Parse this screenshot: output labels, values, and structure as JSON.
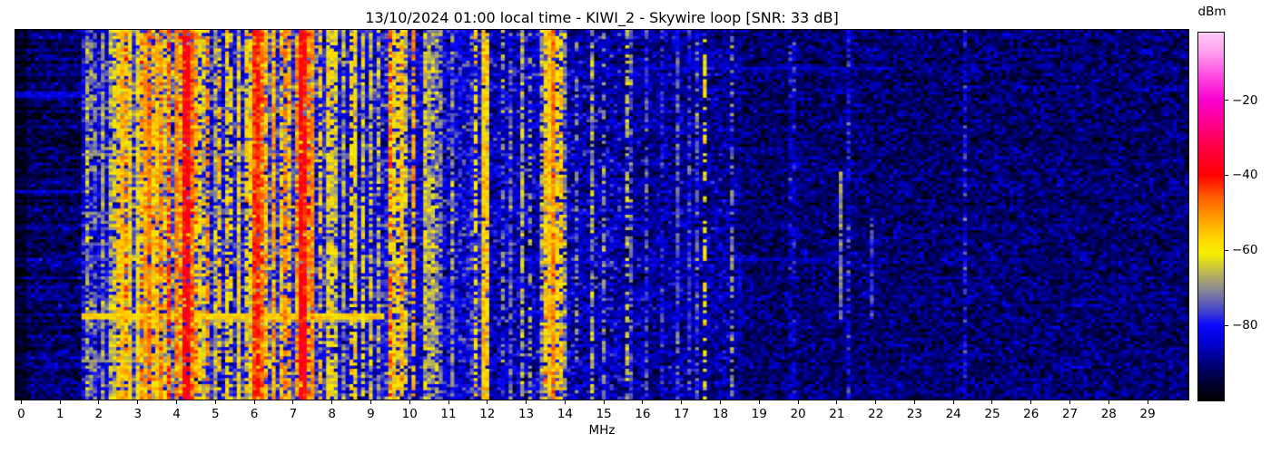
{
  "chart_data": {
    "type": "heatmap",
    "title": "13/10/2024 01:00 local time - KIWI_2 - Skywire loop [SNR: 33 dB]",
    "xlabel": "MHz",
    "x_axis": {
      "min_mhz": -0.15,
      "max_mhz": 30.05,
      "ticks": [
        0,
        1,
        2,
        3,
        4,
        5,
        6,
        7,
        8,
        9,
        10,
        11,
        12,
        13,
        14,
        15,
        16,
        17,
        18,
        19,
        20,
        21,
        22,
        23,
        24,
        25,
        26,
        27,
        28,
        29
      ]
    },
    "y_axis": {
      "description": "time (waterfall, no ticks shown)"
    },
    "colorbar": {
      "label": "dBm",
      "vmax": -2,
      "vmin": -100,
      "ticks": [
        {
          "value": -20,
          "label": "−20"
        },
        {
          "value": -40,
          "label": "−40"
        },
        {
          "value": -60,
          "label": "−60"
        },
        {
          "value": -80,
          "label": "−80"
        }
      ]
    },
    "colormap_stops": [
      [
        0,
        "#ffddfa"
      ],
      [
        -7,
        "#ffa0f0"
      ],
      [
        -14,
        "#ff44e0"
      ],
      [
        -20,
        "#f800cf"
      ],
      [
        -26,
        "#ff0090"
      ],
      [
        -33,
        "#ff0040"
      ],
      [
        -40,
        "#ff0000"
      ],
      [
        -46,
        "#ff6000"
      ],
      [
        -52,
        "#ffa500"
      ],
      [
        -57,
        "#ffd800"
      ],
      [
        -61,
        "#f6ee00"
      ],
      [
        -66,
        "#bdb752"
      ],
      [
        -71,
        "#84849b"
      ],
      [
        -76,
        "#4646c8"
      ],
      [
        -80,
        "#0909ff"
      ],
      [
        -85,
        "#0000cf"
      ],
      [
        -90,
        "#000080"
      ],
      [
        -95,
        "#000038"
      ],
      [
        -100,
        "#000000"
      ]
    ],
    "grid": {
      "cols": 302,
      "rows": 120
    },
    "seed": 20241013,
    "bands": [
      {
        "f0": -0.2,
        "f1": 0.12,
        "base": -96,
        "sigma": 2.5,
        "stripe_prob": 0.0,
        "stripe_level": -90,
        "stripe_spread": 4
      },
      {
        "f0": 0.12,
        "f1": 1.55,
        "base": -91.5,
        "sigma": 4,
        "stripe_prob": 0.04,
        "stripe_level": -84,
        "stripe_spread": 5
      },
      {
        "f0": 1.55,
        "f1": 2.35,
        "base": -82,
        "sigma": 5,
        "stripe_prob": 0.3,
        "stripe_level": -72,
        "stripe_spread": 10
      },
      {
        "f0": 2.35,
        "f1": 3.75,
        "base": -76,
        "sigma": 6,
        "stripe_prob": 0.75,
        "stripe_level": -58,
        "stripe_spread": 14
      },
      {
        "f0": 3.75,
        "f1": 4.55,
        "base": -73,
        "sigma": 7,
        "stripe_prob": 0.85,
        "stripe_level": -52,
        "stripe_spread": 14
      },
      {
        "f0": 4.55,
        "f1": 5.85,
        "base": -80,
        "sigma": 6,
        "stripe_prob": 0.45,
        "stripe_level": -62,
        "stripe_spread": 12
      },
      {
        "f0": 5.85,
        "f1": 6.45,
        "base": -75,
        "sigma": 6,
        "stripe_prob": 0.8,
        "stripe_level": -54,
        "stripe_spread": 12
      },
      {
        "f0": 6.45,
        "f1": 7.05,
        "base": -78,
        "sigma": 6,
        "stripe_prob": 0.6,
        "stripe_level": -58,
        "stripe_spread": 12
      },
      {
        "f0": 7.05,
        "f1": 7.5,
        "base": -71,
        "sigma": 7,
        "stripe_prob": 0.9,
        "stripe_level": -47,
        "stripe_spread": 12
      },
      {
        "f0": 7.5,
        "f1": 8.15,
        "base": -79,
        "sigma": 6,
        "stripe_prob": 0.55,
        "stripe_level": -60,
        "stripe_spread": 12
      },
      {
        "f0": 8.15,
        "f1": 9.25,
        "base": -82,
        "sigma": 5,
        "stripe_prob": 0.3,
        "stripe_level": -66,
        "stripe_spread": 10
      },
      {
        "f0": 9.25,
        "f1": 10.1,
        "base": -80,
        "sigma": 6,
        "stripe_prob": 0.6,
        "stripe_level": -60,
        "stripe_spread": 12
      },
      {
        "f0": 10.1,
        "f1": 11.55,
        "base": -83,
        "sigma": 5,
        "stripe_prob": 0.25,
        "stripe_level": -68,
        "stripe_spread": 10
      },
      {
        "f0": 11.55,
        "f1": 12.1,
        "base": -80,
        "sigma": 6,
        "stripe_prob": 0.6,
        "stripe_level": -60,
        "stripe_spread": 10
      },
      {
        "f0": 12.1,
        "f1": 13.4,
        "base": -85,
        "sigma": 5,
        "stripe_prob": 0.2,
        "stripe_level": -70,
        "stripe_spread": 10
      },
      {
        "f0": 13.4,
        "f1": 13.9,
        "base": -78,
        "sigma": 6,
        "stripe_prob": 0.75,
        "stripe_level": -56,
        "stripe_spread": 10
      },
      {
        "f0": 13.9,
        "f1": 15.45,
        "base": -86,
        "sigma": 5,
        "stripe_prob": 0.15,
        "stripe_level": -72,
        "stripe_spread": 8
      },
      {
        "f0": 15.45,
        "f1": 18.6,
        "base": -88,
        "sigma": 4.5,
        "stripe_prob": 0.12,
        "stripe_level": -78,
        "stripe_spread": 7
      },
      {
        "f0": 18.6,
        "f1": 30.2,
        "base": -91,
        "sigma": 4,
        "stripe_prob": 0.03,
        "stripe_level": -83,
        "stripe_spread": 5
      }
    ],
    "carriers": [
      {
        "f": 1.75,
        "level": -70,
        "duty": 0.5
      },
      {
        "f": 1.93,
        "level": -72,
        "duty": 0.45
      },
      {
        "f": 2.1,
        "level": -68,
        "duty": 0.5
      },
      {
        "f": 2.25,
        "level": -66,
        "duty": 0.5
      },
      {
        "f": 2.45,
        "level": -56,
        "duty": 0.8
      },
      {
        "f": 2.62,
        "level": -54,
        "duty": 0.8
      },
      {
        "f": 2.78,
        "level": -58,
        "duty": 0.7
      },
      {
        "f": 2.95,
        "level": -62,
        "duty": 0.6
      },
      {
        "f": 3.2,
        "level": -52,
        "duty": 0.8
      },
      {
        "f": 3.33,
        "level": -48,
        "duty": 0.85
      },
      {
        "f": 3.48,
        "level": -55,
        "duty": 0.7
      },
      {
        "f": 3.62,
        "level": -50,
        "duty": 0.8
      },
      {
        "f": 3.95,
        "level": -50,
        "duty": 0.75
      },
      {
        "f": 4.15,
        "level": -40,
        "duty": 0.9,
        "w": 2
      },
      {
        "f": 4.28,
        "level": -38,
        "duty": 0.95,
        "w": 2
      },
      {
        "f": 4.42,
        "level": -46,
        "duty": 0.8
      },
      {
        "f": 4.75,
        "level": -50,
        "duty": 0.6
      },
      {
        "f": 5.06,
        "level": -55,
        "duty": 0.5
      },
      {
        "f": 5.35,
        "level": -60,
        "duty": 0.45
      },
      {
        "f": 5.62,
        "level": -58,
        "duty": 0.45
      },
      {
        "f": 5.95,
        "level": -44,
        "duty": 0.85
      },
      {
        "f": 6.07,
        "level": -42,
        "duty": 0.9
      },
      {
        "f": 6.19,
        "level": -46,
        "duty": 0.8
      },
      {
        "f": 6.45,
        "level": -54,
        "duty": 0.6
      },
      {
        "f": 6.8,
        "level": -50,
        "duty": 0.7
      },
      {
        "f": 7.2,
        "level": -38,
        "duty": 0.95,
        "w": 2
      },
      {
        "f": 7.33,
        "level": -41,
        "duty": 0.9
      },
      {
        "f": 7.48,
        "level": -50,
        "duty": 0.7
      },
      {
        "f": 7.7,
        "level": -56,
        "duty": 0.6
      },
      {
        "f": 7.9,
        "level": -58,
        "duty": 0.55
      },
      {
        "f": 8.45,
        "level": -56,
        "duty": 0.5
      },
      {
        "f": 8.6,
        "level": -60,
        "duty": 0.45
      },
      {
        "f": 9.5,
        "level": -46,
        "duty": 0.6
      },
      {
        "f": 9.65,
        "level": -58,
        "duty": 0.6
      },
      {
        "f": 9.8,
        "level": -60,
        "duty": 0.5
      },
      {
        "f": 10.05,
        "level": -52,
        "duty": 0.75
      },
      {
        "f": 10.45,
        "level": -68,
        "duty": 0.5
      },
      {
        "f": 10.75,
        "level": -70,
        "duty": 0.45
      },
      {
        "f": 11.65,
        "level": -58,
        "duty": 0.6
      },
      {
        "f": 11.85,
        "level": -56,
        "duty": 0.65
      },
      {
        "f": 12.0,
        "level": -60,
        "duty": 0.5
      },
      {
        "f": 12.4,
        "level": -70,
        "duty": 0.4
      },
      {
        "f": 12.85,
        "level": -72,
        "duty": 0.4
      },
      {
        "f": 13.1,
        "level": -68,
        "duty": 0.4
      },
      {
        "f": 13.57,
        "level": -56,
        "duty": 0.7
      },
      {
        "f": 13.7,
        "level": -50,
        "duty": 0.85
      },
      {
        "f": 13.82,
        "level": -58,
        "duty": 0.6
      },
      {
        "f": 14.25,
        "level": -72,
        "duty": 0.4
      },
      {
        "f": 15.0,
        "level": -70,
        "duty": 0.45
      },
      {
        "f": 15.6,
        "level": -66,
        "duty": 0.5
      },
      {
        "f": 16.1,
        "level": -76,
        "duty": 0.6
      },
      {
        "f": 16.5,
        "level": -78,
        "duty": 0.5
      },
      {
        "f": 16.95,
        "level": -74,
        "duty": 0.5
      },
      {
        "f": 17.55,
        "level": -60,
        "duty": 0.45
      },
      {
        "f": 18.25,
        "level": -72,
        "duty": 0.5
      },
      {
        "f": 21.05,
        "level": -72,
        "duty": 0.9,
        "y0": 0.38,
        "y1": 0.78
      },
      {
        "f": 21.9,
        "level": -77,
        "duty": 0.8,
        "y0": 0.5,
        "y1": 0.78
      }
    ],
    "events": [
      {
        "y": 0.765,
        "rows": 2,
        "f0": 1.6,
        "f1": 9.3,
        "level": -57
      },
      {
        "y": 0.782,
        "rows": 1,
        "f0": 2.3,
        "f1": 8.9,
        "level": -67
      },
      {
        "y": 0.331,
        "rows": 1,
        "f0": 1.55,
        "f1": 8.5,
        "level": -71
      },
      {
        "y": 0.21,
        "rows": 1,
        "f0": 1.55,
        "f1": 7.0,
        "level": -72
      },
      {
        "y": 0.49,
        "rows": 1,
        "f0": 1.55,
        "f1": 5.2,
        "level": -73
      },
      {
        "y": 0.575,
        "rows": 1,
        "f0": 1.55,
        "f1": 6.3,
        "level": -74
      },
      {
        "y": 0.895,
        "rows": 1,
        "f0": 1.55,
        "f1": 4.6,
        "level": -69
      },
      {
        "y": 0.165,
        "rows": 2,
        "f0": -0.2,
        "f1": 1.6,
        "level": -84
      },
      {
        "y": 0.43,
        "rows": 1,
        "f0": -0.2,
        "f1": 1.6,
        "level": -85
      },
      {
        "y": 0.096,
        "rows": 1,
        "f0": 15.4,
        "f1": 22.5,
        "level": -85
      },
      {
        "y": 0.62,
        "rows": 1,
        "f0": 15.4,
        "f1": 21.0,
        "level": -86
      }
    ]
  }
}
